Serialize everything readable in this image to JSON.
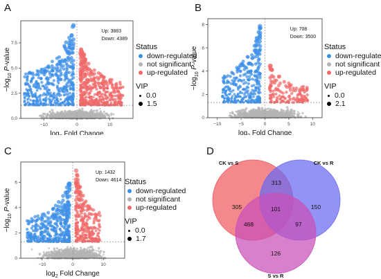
{
  "colors": {
    "down": "#3d8fe6",
    "ns": "#b4b4b4",
    "up": "#f06a6a"
  },
  "panels": [
    {
      "letter": "A",
      "ylabel_main": "−log",
      "ylabel_sub": "10",
      "ylabel_p": "P",
      "ylabel_tail": "-value",
      "xlabel_main": "log",
      "xlabel_sub": "2",
      "xlabel_tail": " Fold Change",
      "annot_up": "Up: 3883",
      "annot_down": "Down: 4389",
      "legend": {
        "status_title": "Status",
        "items": [
          "down-regulated",
          "not significant",
          "up-regulated"
        ],
        "vip_title": "VIP",
        "vip_values": [
          "0.0",
          "1.5"
        ]
      }
    },
    {
      "letter": "B",
      "ylabel_main": "−log",
      "ylabel_sub": "10",
      "ylabel_p": "P",
      "ylabel_tail": "-value",
      "xlabel_main": "log",
      "xlabel_sub": "2",
      "xlabel_tail": " Fold Change",
      "annot_up": "Up: 708",
      "annot_down": "Down: 3500",
      "legend": {
        "status_title": "Status",
        "items": [
          "down-regulated",
          "not significant",
          "up-regulated"
        ],
        "vip_title": "VIP",
        "vip_values": [
          "0.0",
          "2.1"
        ]
      }
    },
    {
      "letter": "C",
      "ylabel_main": "−log",
      "ylabel_sub": "10",
      "ylabel_p": "P",
      "ylabel_tail": "-value",
      "xlabel_main": "log",
      "xlabel_sub": "2",
      "xlabel_tail": " Fold Change",
      "annot_up": "Up: 1432",
      "annot_down": "Down: 4614",
      "legend": {
        "status_title": "Status",
        "items": [
          "down-regulated",
          "not significant",
          "up-regulated"
        ],
        "vip_title": "VIP",
        "vip_values": [
          "0.0",
          "1.7"
        ]
      }
    }
  ],
  "venn": {
    "letter": "D",
    "colors": {
      "ckS": "#f05a60",
      "ckR": "#6a6af2",
      "sR": "#c94fb8"
    }
  },
  "chart_data": [
    {
      "type": "scatter",
      "panel": "A",
      "xticks": [
        -10,
        0,
        10
      ],
      "yticks": [
        0.0,
        2.5,
        5.0,
        7.5
      ],
      "xlim": [
        -17,
        17
      ],
      "ylim": [
        0,
        9.7
      ],
      "threshold_y": 1.3,
      "counts": {
        "up": 3883,
        "down": 4389
      },
      "series": [
        {
          "name": "down-regulated",
          "x_range": [
            -16,
            -1
          ],
          "y_max": 9.5
        },
        {
          "name": "not significant",
          "x_range": [
            -16,
            16
          ],
          "y_max": 1.3
        },
        {
          "name": "up-regulated",
          "x_range": [
            1,
            14
          ],
          "y_max": 7.3
        }
      ]
    },
    {
      "type": "scatter",
      "panel": "B",
      "xticks": [
        -10,
        -5,
        0,
        5,
        10
      ],
      "yticks": [
        0,
        2,
        4,
        6,
        8
      ],
      "xlim": [
        -12,
        12
      ],
      "ylim": [
        0,
        8.5
      ],
      "threshold_y": 1.3,
      "counts": {
        "up": 708,
        "down": 3500
      },
      "series": [
        {
          "name": "down-regulated",
          "x_range": [
            -9,
            -1
          ],
          "y_max": 8.0
        },
        {
          "name": "not significant",
          "x_range": [
            -11,
            11
          ],
          "y_max": 1.3
        },
        {
          "name": "up-regulated",
          "x_range": [
            1,
            9
          ],
          "y_max": 4.7
        }
      ]
    },
    {
      "type": "scatter",
      "panel": "C",
      "xticks": [
        -10,
        0,
        10
      ],
      "yticks": [
        0,
        2,
        4,
        6
      ],
      "xlim": [
        -17,
        17
      ],
      "ylim": [
        0,
        7.6
      ],
      "threshold_y": 1.3,
      "counts": {
        "up": 1432,
        "down": 4614
      },
      "series": [
        {
          "name": "down-regulated",
          "x_range": [
            -15,
            -1
          ],
          "y_max": 6.1
        },
        {
          "name": "not significant",
          "x_range": [
            -16,
            16
          ],
          "y_max": 1.3
        },
        {
          "name": "up-regulated",
          "x_range": [
            1,
            9
          ],
          "y_max": 7.2
        }
      ]
    },
    {
      "type": "venn",
      "panel": "D",
      "sets": [
        "CK vs S",
        "CK vs R",
        "S vs R"
      ],
      "regions": [
        {
          "sets": [
            "CK vs S"
          ],
          "value": 305
        },
        {
          "sets": [
            "CK vs R"
          ],
          "value": 150
        },
        {
          "sets": [
            "S vs R"
          ],
          "value": 126
        },
        {
          "sets": [
            "CK vs S",
            "CK vs R"
          ],
          "value": 313
        },
        {
          "sets": [
            "CK vs S",
            "S vs R"
          ],
          "value": 468
        },
        {
          "sets": [
            "CK vs R",
            "S vs R"
          ],
          "value": 97
        },
        {
          "sets": [
            "CK vs S",
            "CK vs R",
            "S vs R"
          ],
          "value": 101
        }
      ]
    }
  ]
}
